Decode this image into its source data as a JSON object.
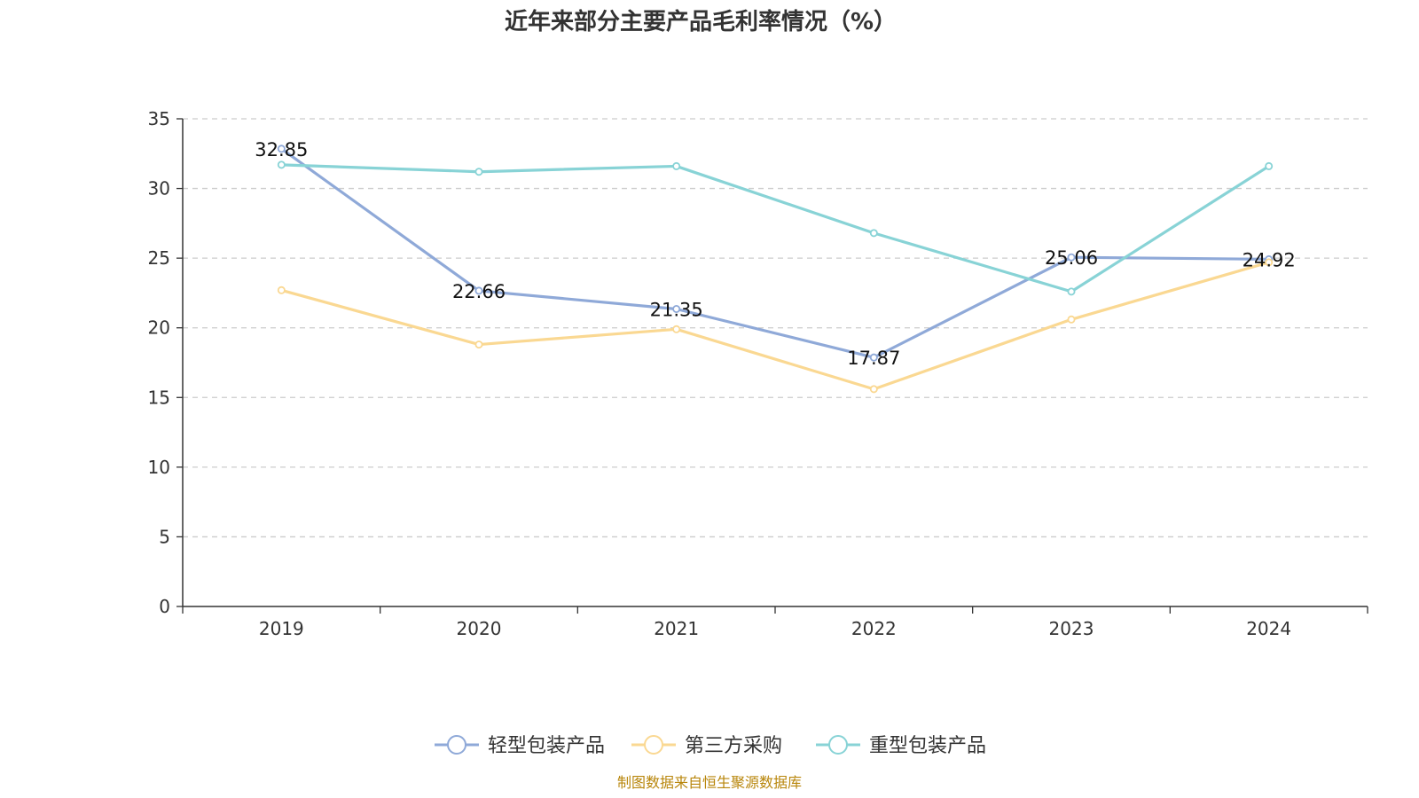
{
  "chart_data": {
    "type": "line",
    "title": "近年来部分主要产品毛利率情况（%）",
    "categories": [
      "2019",
      "2020",
      "2021",
      "2022",
      "2023",
      "2024"
    ],
    "ylim": [
      0,
      35
    ],
    "yticks": [
      0,
      5,
      10,
      15,
      20,
      25,
      30,
      35
    ],
    "grid": true,
    "legend_position": "bottom",
    "series": [
      {
        "name": "轻型包装产品",
        "color": "#8fa9d8",
        "values": [
          32.85,
          22.66,
          21.35,
          17.87,
          25.06,
          24.92
        ],
        "labels": [
          "32.85",
          "22.66",
          "21.35",
          "17.87",
          "25.06",
          "24.92"
        ]
      },
      {
        "name": "第三方采购",
        "color": "#fad892",
        "values": [
          22.7,
          18.8,
          19.9,
          15.6,
          20.6,
          24.7
        ]
      },
      {
        "name": "重型包装产品",
        "color": "#88d3d6",
        "values": [
          31.7,
          31.2,
          31.6,
          26.8,
          22.6,
          31.6
        ]
      }
    ]
  },
  "footer": {
    "source": "制图数据来自恒生聚源数据库"
  }
}
